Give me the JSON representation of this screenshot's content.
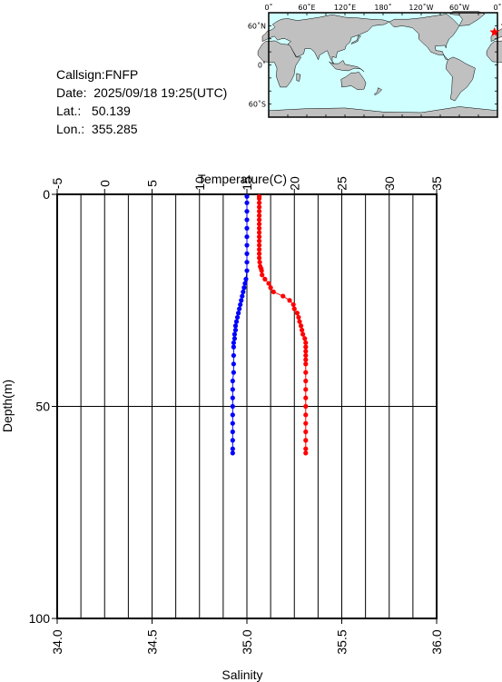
{
  "info": {
    "callsign_label": "Callsign:",
    "callsign_value": "FNFP",
    "date_label": "Date:",
    "date_value": "2025/09/18 19:25(UTC)",
    "lat_label": "Lat.:",
    "lat_value": "50.139",
    "lon_label": "Lon.:",
    "lon_value": "355.285"
  },
  "map": {
    "lon_labels": [
      "0˚",
      "60˚E",
      "120˚E",
      "180˚",
      "120˚W",
      "60˚W",
      "0˚"
    ],
    "lat_labels": [
      "60˚N",
      "0˚",
      "60˚S"
    ],
    "ocean_color": "#cfffff",
    "land_color": "#c0c0c0",
    "marker_color": "#ff0000",
    "marker_lat": 50.139,
    "marker_lon": 355.285
  },
  "chart_data": {
    "type": "line",
    "x_top_label": "Temperature(C)",
    "x_bottom_label": "Salinity",
    "y_label": "Depth(m)",
    "temperature_range": [
      -5,
      35
    ],
    "temperature_ticks": [
      "-5",
      "0",
      "5",
      "10",
      "15",
      "20",
      "25",
      "30",
      "35"
    ],
    "salinity_range": [
      34.0,
      36.0
    ],
    "salinity_ticks": [
      "34.0",
      "34.5",
      "35.0",
      "35.5",
      "36.0"
    ],
    "depth_range": [
      0,
      100
    ],
    "depth_ticks": [
      "0",
      "50",
      "100"
    ],
    "grid": true,
    "series": [
      {
        "quantity": "temperature",
        "color": "#ff0000",
        "depth": [
          0.5,
          1,
          2,
          3,
          4,
          5,
          6,
          7,
          8,
          9,
          10,
          11,
          12,
          13,
          14,
          15,
          16,
          17,
          17.5,
          18,
          19,
          20,
          21,
          22,
          23,
          24,
          25,
          26,
          27,
          28,
          29,
          30,
          31,
          32,
          33,
          34,
          35,
          36,
          37,
          38,
          39,
          40,
          42,
          44,
          46,
          48,
          50,
          52,
          54,
          56,
          58,
          60,
          61
        ],
        "values": [
          16.3,
          16.3,
          16.3,
          16.3,
          16.3,
          16.3,
          16.3,
          16.3,
          16.3,
          16.3,
          16.3,
          16.3,
          16.3,
          16.3,
          16.3,
          16.3,
          16.35,
          16.4,
          16.5,
          16.55,
          16.6,
          16.9,
          17.3,
          17.5,
          17.8,
          18.8,
          19.5,
          19.9,
          20.0,
          20.3,
          20.45,
          20.55,
          20.7,
          20.8,
          20.9,
          21.1,
          21.2,
          21.2,
          21.2,
          21.2,
          21.2,
          21.2,
          21.2,
          21.2,
          21.2,
          21.2,
          21.2,
          21.2,
          21.2,
          21.2,
          21.2,
          21.2,
          21.2
        ]
      },
      {
        "quantity": "salinity",
        "color": "#0000ff",
        "depth": [
          0.5,
          2,
          4,
          6,
          8,
          10,
          12,
          14,
          16,
          18,
          20,
          21,
          22,
          23,
          24,
          25,
          26,
          27,
          28,
          29,
          30,
          31,
          32,
          33,
          34,
          35,
          36,
          38,
          40,
          42,
          44,
          46,
          48,
          50,
          52,
          54,
          56,
          58,
          60,
          61
        ],
        "values": [
          35.0,
          35.0,
          35.0,
          35.0,
          35.0,
          35.0,
          35.0,
          35.0,
          35.0,
          35.0,
          34.995,
          34.99,
          34.985,
          34.98,
          34.975,
          34.97,
          34.965,
          34.96,
          34.955,
          34.95,
          34.945,
          34.94,
          34.94,
          34.935,
          34.935,
          34.93,
          34.93,
          34.93,
          34.93,
          34.93,
          34.925,
          34.925,
          34.925,
          34.925,
          34.925,
          34.925,
          34.925,
          34.925,
          34.925,
          34.925
        ]
      }
    ]
  }
}
